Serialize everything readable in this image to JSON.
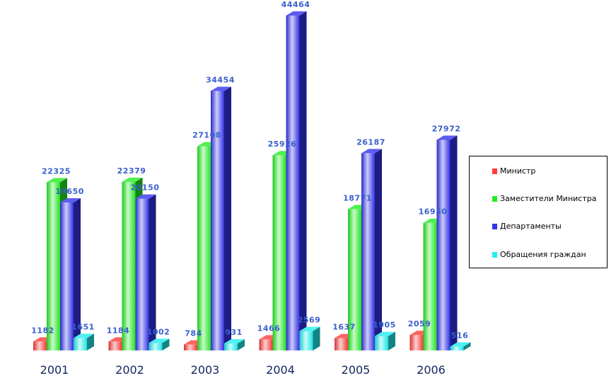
{
  "chart_data": {
    "type": "bar",
    "categories": [
      "2001",
      "2002",
      "2003",
      "2004",
      "2005",
      "2006"
    ],
    "series": [
      {
        "name": "Министр",
        "color": "#ff3b3b",
        "values": [
          1182,
          1184,
          784,
          1466,
          1637,
          2059
        ]
      },
      {
        "name": "Заместители Министра",
        "color": "#22ee22",
        "values": [
          22325,
          22379,
          27108,
          25926,
          18771,
          16950
        ]
      },
      {
        "name": "Департаменты",
        "color": "#3333ee",
        "values": [
          19650,
          20150,
          34454,
          44464,
          26187,
          27972
        ]
      },
      {
        "name": "Обращения граждан",
        "color": "#22eeee",
        "values": [
          1651,
          1002,
          931,
          2569,
          1905,
          516
        ]
      }
    ],
    "ylim": [
      0,
      44464
    ],
    "legend_position": "right",
    "grid": false,
    "style": "3d-cylinder-bars"
  }
}
